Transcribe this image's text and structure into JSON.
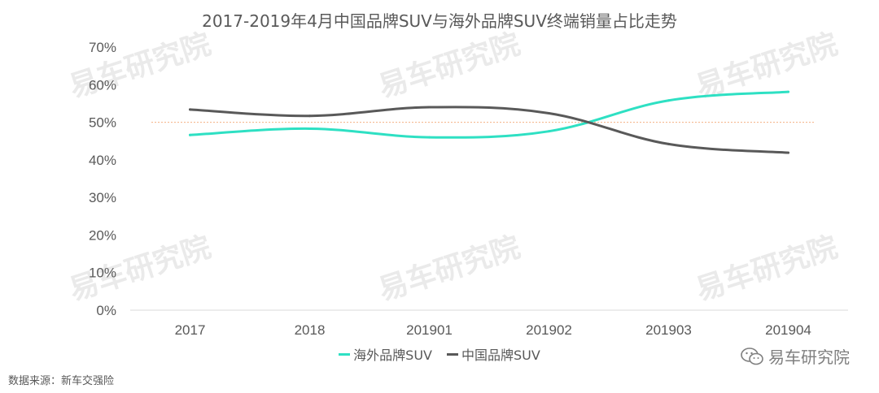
{
  "title": "2017-2019年4月中国品牌SUV与海外品牌SUV终端销量占比走势",
  "source": "数据来源：新车交强险",
  "brand_label": "易车研究院",
  "watermark_text": "易车研究院",
  "chart_data": {
    "type": "line",
    "categories": [
      "2017",
      "2018",
      "201901",
      "201902",
      "201903",
      "201904"
    ],
    "ylim": [
      0,
      70
    ],
    "yticks": [
      "0%",
      "10%",
      "20%",
      "30%",
      "40%",
      "50%",
      "60%",
      "70%"
    ],
    "reference_line": 50,
    "grid": false,
    "legend_position": "bottom",
    "series": [
      {
        "name": "海外品牌SUV",
        "color": "#2ee0c3",
        "values": [
          46.6,
          48.3,
          46.0,
          47.6,
          55.8,
          58.1
        ]
      },
      {
        "name": "中国品牌SUV",
        "color": "#595959",
        "values": [
          53.4,
          51.7,
          54.0,
          52.4,
          44.2,
          41.9
        ]
      }
    ],
    "reference_color": "#f4b183"
  }
}
